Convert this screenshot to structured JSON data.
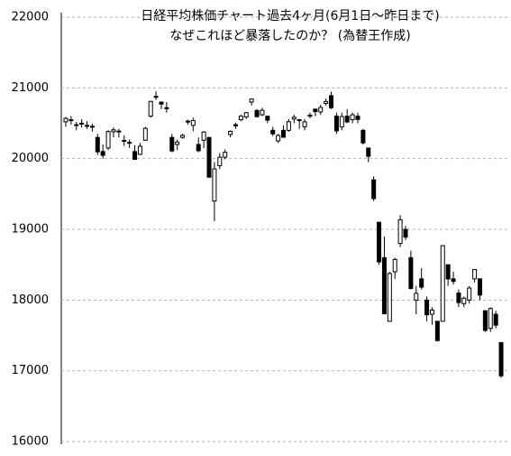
{
  "chart_data": {
    "type": "candlestick",
    "title": "日経平均株価チャート過去4ヶ月(6月1日～昨日まで)",
    "subtitle": "なぜこれほど暴落したのか？ (為替王作成)",
    "ylim": [
      16000,
      22000
    ],
    "yticks": [
      16000,
      17000,
      18000,
      19000,
      20000,
      21000,
      22000
    ],
    "grid": true,
    "up_color": "#ffffff",
    "down_color": "#000000",
    "open": [
      20520,
      20550,
      20480,
      20500,
      20470,
      20450,
      20300,
      20100,
      20150,
      20380,
      20390,
      20250,
      20230,
      20100,
      20060,
      20260,
      20600,
      20880,
      20800,
      20720,
      20300,
      20200,
      20300,
      20530,
      20470,
      20200,
      20260,
      20300,
      19400,
      19900,
      20020,
      20340,
      20480,
      20550,
      20590,
      20800,
      20680,
      20620,
      20600,
      20400,
      20250,
      20400,
      20400,
      20560,
      20550,
      20450,
      20600,
      20700,
      20660,
      20780,
      20890,
      20600,
      20450,
      20600,
      20550,
      20600,
      20400,
      20150,
      19700,
      19100,
      18600,
      17700,
      18400,
      18800,
      19000,
      18600,
      18000,
      18300,
      18000,
      17800,
      17700,
      17700,
      18500,
      18300,
      18100,
      17950,
      18000,
      18300,
      18300,
      17850,
      17600,
      17800,
      17400
    ],
    "high": [
      20590,
      20600,
      20520,
      20560,
      20530,
      20490,
      20350,
      20200,
      20400,
      20440,
      20420,
      20330,
      20270,
      20190,
      20220,
      20450,
      20820,
      20952,
      20800,
      20800,
      20350,
      20270,
      20350,
      20550,
      20580,
      20300,
      20390,
      20300,
      19950,
      20080,
      20130,
      20400,
      20510,
      20620,
      20660,
      20850,
      20700,
      20720,
      20600,
      20450,
      20350,
      20470,
      20560,
      20620,
      20560,
      20560,
      20650,
      20700,
      20760,
      20850,
      20946,
      20650,
      20650,
      20700,
      20650,
      20650,
      20420,
      20150,
      19750,
      19100,
      18900,
      18400,
      18600,
      19200,
      19050,
      18700,
      18200,
      18450,
      18050,
      17900,
      17700,
      18770,
      18500,
      18400,
      18150,
      18050,
      18200,
      18400,
      18300,
      17850,
      17900,
      17850,
      17400
    ],
    "low": [
      20450,
      20480,
      20400,
      20440,
      20420,
      20380,
      20050,
      20000,
      20120,
      20300,
      20300,
      20180,
      20150,
      19990,
      20050,
      20250,
      20580,
      20830,
      20700,
      20650,
      20090,
      20120,
      20280,
      20480,
      20390,
      20090,
      20150,
      19737,
      19115,
      19850,
      19990,
      20300,
      20420,
      20530,
      20560,
      20750,
      20580,
      20600,
      20500,
      20320,
      20220,
      20300,
      20380,
      20500,
      20420,
      20400,
      20570,
      20600,
      20620,
      20750,
      20700,
      20350,
      20400,
      20500,
      20500,
      20500,
      20200,
      19950,
      19400,
      18500,
      17806,
      17700,
      18300,
      18750,
      18850,
      18150,
      17800,
      18150,
      17700,
      17650,
      17415,
      17700,
      18200,
      18220,
      17900,
      17900,
      17950,
      18250,
      18000,
      17550,
      17550,
      17600,
      16900
    ],
    "close": [
      20569,
      20543,
      20473,
      20488,
      20460,
      20457,
      20096,
      20046,
      20383,
      20407,
      20387,
      20257,
      20219,
      19990,
      20174,
      20428,
      20809,
      20868,
      20771,
      20706,
      20109,
      20235,
      20329,
      20522,
      20539,
      20112,
      20376,
      19737,
      19855,
      20020,
      20089,
      20385,
      20463,
      20600,
      20650,
      20841,
      20593,
      20683,
      20544,
      20350,
      20328,
      20302,
      20522,
      20585,
      20548,
      20520,
      20614,
      20664,
      20724,
      20808,
      20720,
      20392,
      20595,
      20519,
      20620,
      20554,
      20222,
      20033,
      19435,
      18540,
      17806,
      18376,
      18574,
      19136,
      18890,
      18165,
      18095,
      18182,
      17792,
      17860,
      17427,
      18770,
      18299,
      18264,
      17965,
      18026,
      18171,
      18432,
      18070,
      17571,
      17880,
      17645,
      16930
    ]
  }
}
